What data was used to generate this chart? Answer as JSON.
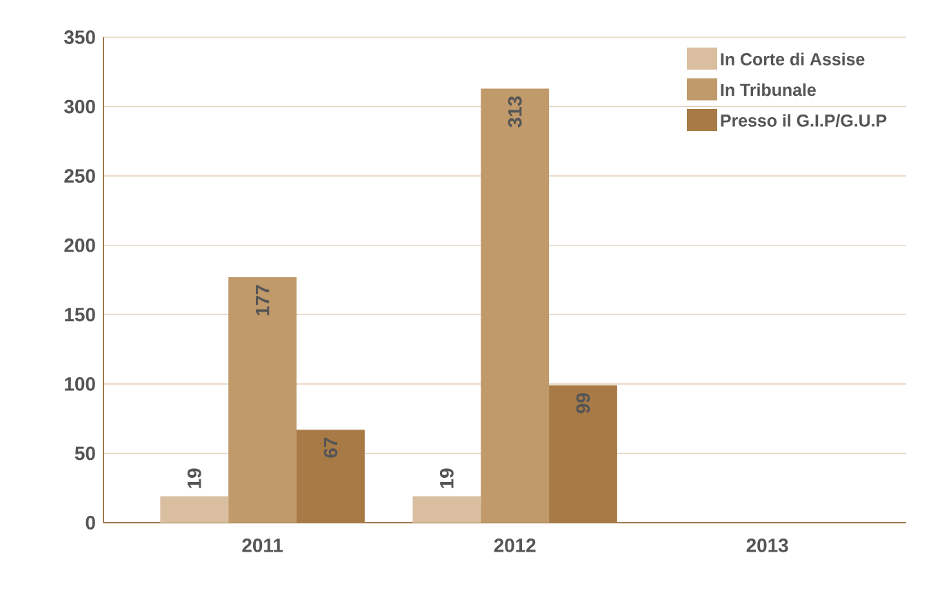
{
  "chart_data": {
    "type": "bar",
    "categories": [
      "2011",
      "2012",
      "2013"
    ],
    "series": [
      {
        "name": "In Corte di Assise",
        "color": "#d9bfa0",
        "values": [
          19,
          19,
          null
        ]
      },
      {
        "name": "In Tribunale",
        "color": "#c09a6b",
        "values": [
          177,
          313,
          null
        ]
      },
      {
        "name": "Presso il G.I.P/G.U.P",
        "color": "#a87a45",
        "values": [
          67,
          99,
          null
        ]
      }
    ],
    "ylim": [
      0,
      350
    ],
    "yticks": [
      0,
      50,
      100,
      150,
      200,
      250,
      300,
      350
    ],
    "grid": "y",
    "legend": "top right",
    "data_labels": true
  }
}
